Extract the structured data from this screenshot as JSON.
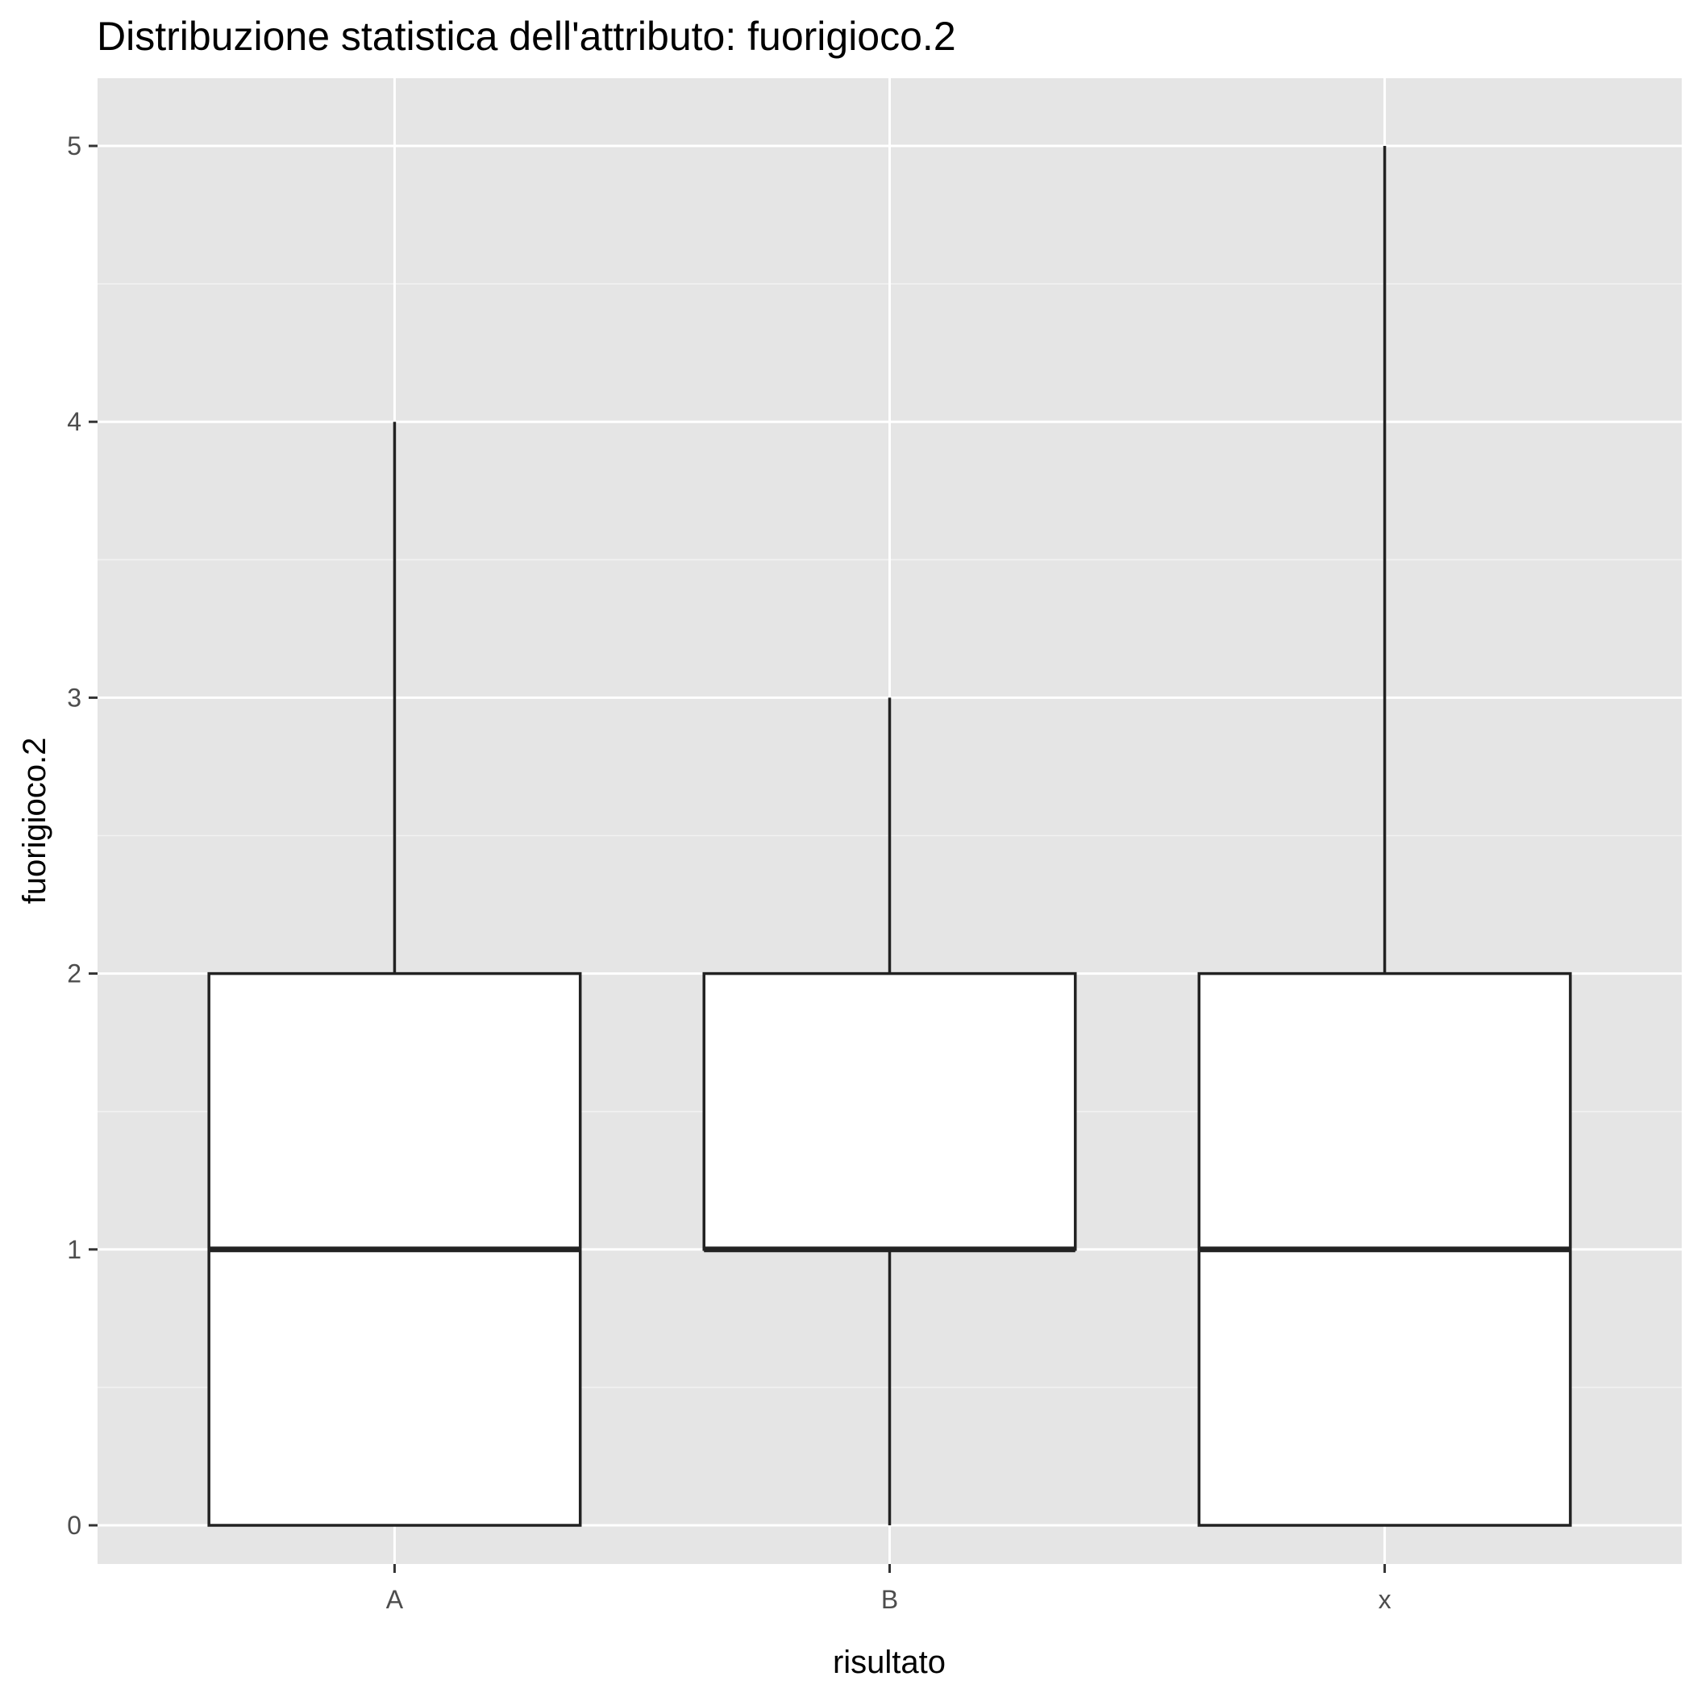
{
  "chart_data": {
    "type": "boxplot",
    "title": "Distribuzione statistica dell'attributo: fuorigioco.2",
    "xlabel": "risultato",
    "ylabel": "fuorigioco.2",
    "categories": [
      "A",
      "B",
      "x"
    ],
    "boxes": [
      {
        "category": "A",
        "whisker_low": 0,
        "q1": 0,
        "median": 1,
        "q3": 2,
        "whisker_high": 4
      },
      {
        "category": "B",
        "whisker_low": 0,
        "q1": 1,
        "median": 1,
        "q3": 2,
        "whisker_high": 3
      },
      {
        "category": "x",
        "whisker_low": 0,
        "q1": 0,
        "median": 1,
        "q3": 2,
        "whisker_high": 5
      }
    ],
    "ylim": [
      -0.25,
      5.25
    ],
    "yticks": [
      0,
      1,
      2,
      3,
      4,
      5
    ],
    "ytick_labels": [
      "0",
      "1",
      "2",
      "3",
      "4",
      "5"
    ],
    "grid": true,
    "colors": {
      "panel": "#e5e5e5",
      "box_fill": "#ffffff",
      "box_line": "#222222",
      "grid": "#ffffff"
    }
  }
}
